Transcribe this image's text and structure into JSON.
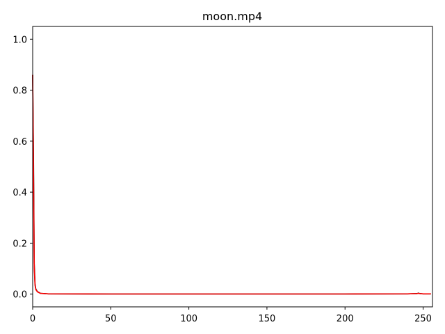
{
  "chart_data": {
    "type": "line",
    "title": "moon.mp4",
    "xlabel": "",
    "ylabel": "",
    "xlim": [
      0,
      256
    ],
    "ylim": [
      -0.05,
      1.05
    ],
    "xticks": [
      0,
      50,
      100,
      150,
      200,
      250
    ],
    "yticks": [
      0.0,
      0.2,
      0.4,
      0.6,
      0.8,
      1.0
    ],
    "xtick_labels": [
      "0",
      "50",
      "100",
      "150",
      "200",
      "250"
    ],
    "ytick_labels": [
      "0.0",
      "0.2",
      "0.4",
      "0.6",
      "0.8",
      "1.0"
    ],
    "grid": false,
    "legend": "none",
    "series": [
      {
        "color": "#000000",
        "points": [
          [
            0,
            0.86
          ],
          [
            0.5,
            0.55
          ],
          [
            1,
            0.12
          ],
          [
            1.5,
            0.04
          ],
          [
            2,
            0.02
          ],
          [
            3,
            0.01
          ],
          [
            5,
            0.003
          ],
          [
            10,
            0.001
          ],
          [
            50,
            0.0005
          ],
          [
            100,
            0.0005
          ],
          [
            150,
            0.0005
          ],
          [
            200,
            0.0005
          ],
          [
            240,
            0.001
          ],
          [
            246,
            0.002
          ],
          [
            247,
            0.004
          ],
          [
            248,
            0.002
          ],
          [
            250,
            0.001
          ],
          [
            255,
            0.001
          ]
        ]
      },
      {
        "color": "#ff0000",
        "points": [
          [
            0,
            0.86
          ],
          [
            0.5,
            0.5
          ],
          [
            1,
            0.1
          ],
          [
            1.5,
            0.035
          ],
          [
            2,
            0.018
          ],
          [
            3,
            0.009
          ],
          [
            5,
            0.003
          ],
          [
            10,
            0.001
          ],
          [
            50,
            0.0005
          ],
          [
            100,
            0.0005
          ],
          [
            150,
            0.0005
          ],
          [
            200,
            0.0005
          ],
          [
            240,
            0.001
          ],
          [
            246,
            0.002
          ],
          [
            247,
            0.003
          ],
          [
            248,
            0.002
          ],
          [
            250,
            0.001
          ],
          [
            255,
            0.001
          ]
        ]
      }
    ]
  }
}
